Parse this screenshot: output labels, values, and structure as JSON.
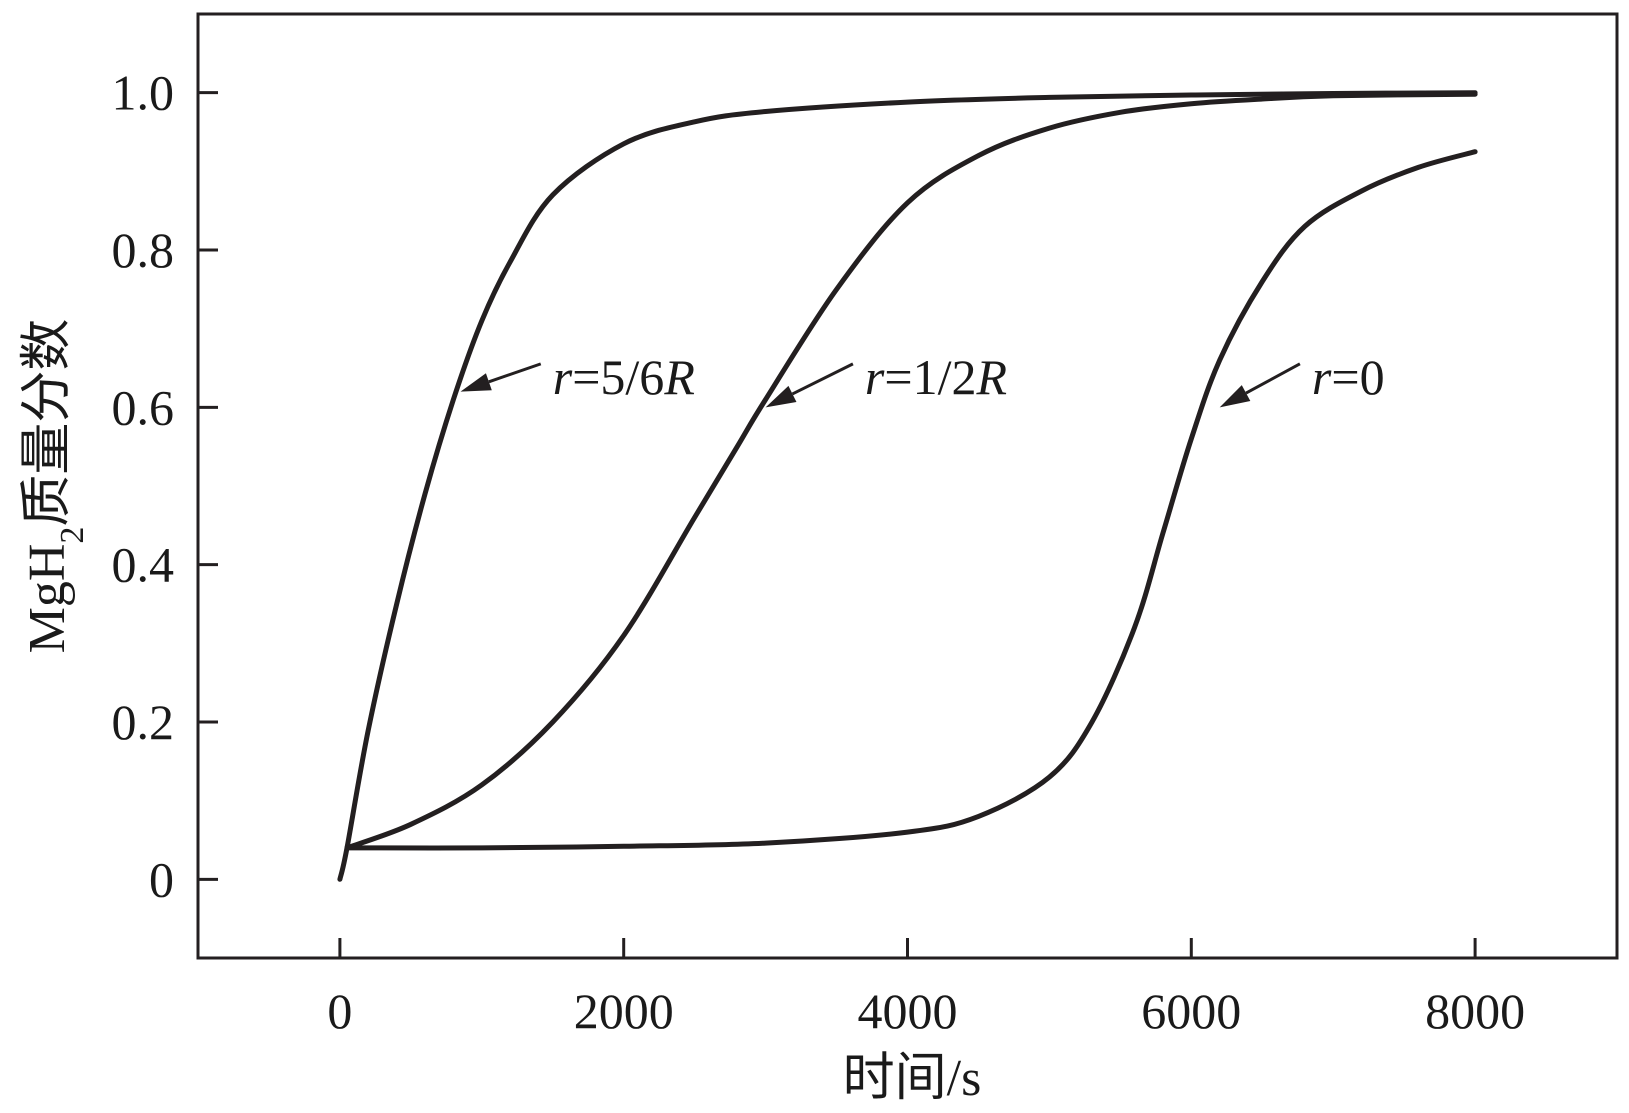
{
  "chart_data": {
    "type": "line",
    "xlabel": "时间/s",
    "ylabel_main": "MgH",
    "ylabel_sub": "2",
    "ylabel_rest": "质量分数",
    "xlim": [
      -1000,
      9000
    ],
    "ylim": [
      -0.1,
      1.1
    ],
    "xticks": [
      0,
      2000,
      4000,
      6000,
      8000
    ],
    "xtick_labels": [
      "0",
      "2000",
      "4000",
      "6000",
      "8000"
    ],
    "yticks": [
      0,
      0.2,
      0.4,
      0.6,
      0.8,
      1.0
    ],
    "ytick_labels": [
      "0",
      "0.2",
      "0.4",
      "0.6",
      "0.8",
      "1.0"
    ],
    "grid": false,
    "legend": "none",
    "series": [
      {
        "name": "r=5/6R",
        "label_italic": "r",
        "label_mid": "=5/6",
        "label_end": "R",
        "x": [
          0,
          50,
          200,
          400,
          600,
          800,
          1000,
          1200,
          1500,
          2000,
          2500,
          3000,
          4000,
          5000,
          6000,
          7000,
          8000
        ],
        "y": [
          0,
          0.04,
          0.19,
          0.35,
          0.49,
          0.61,
          0.71,
          0.785,
          0.87,
          0.935,
          0.963,
          0.976,
          0.988,
          0.994,
          0.997,
          0.999,
          1.0
        ],
        "annotation_at": [
          850,
          0.62
        ],
        "text_at": [
          1500,
          0.64
        ]
      },
      {
        "name": "r=1/2R",
        "label_italic": "r",
        "label_mid": "=1/2",
        "label_end": "R",
        "x": [
          50,
          500,
          1000,
          1500,
          2000,
          2500,
          2800,
          3000,
          3500,
          4000,
          4500,
          5000,
          5500,
          6000,
          6500,
          7000,
          8000
        ],
        "y": [
          0.04,
          0.07,
          0.12,
          0.2,
          0.31,
          0.46,
          0.55,
          0.61,
          0.75,
          0.86,
          0.92,
          0.955,
          0.975,
          0.986,
          0.992,
          0.996,
          0.998
        ],
        "annotation_at": [
          3000,
          0.6
        ],
        "text_at": [
          3700,
          0.64
        ]
      },
      {
        "name": "r=0",
        "label_italic": "r",
        "label_mid": "=0",
        "label_end": "",
        "x": [
          50,
          1000,
          2000,
          3000,
          4000,
          4500,
          5000,
          5300,
          5600,
          5800,
          6000,
          6200,
          6500,
          6800,
          7200,
          7600,
          8000
        ],
        "y": [
          0.04,
          0.04,
          0.042,
          0.046,
          0.06,
          0.08,
          0.13,
          0.2,
          0.32,
          0.44,
          0.56,
          0.66,
          0.76,
          0.83,
          0.875,
          0.905,
          0.925
        ],
        "annotation_at": [
          6200,
          0.6
        ],
        "text_at": [
          6850,
          0.64
        ]
      }
    ]
  }
}
